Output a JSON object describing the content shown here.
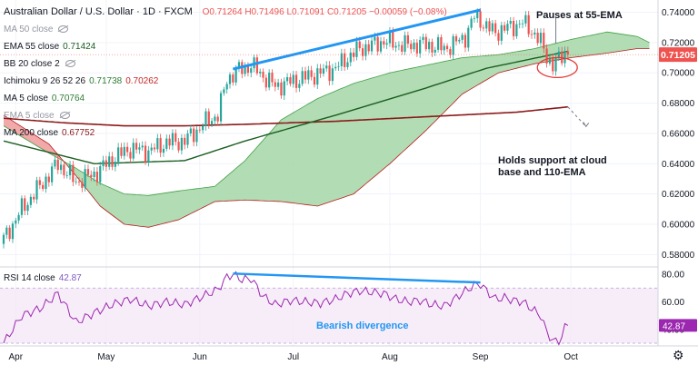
{
  "legend": {
    "title": "Australian Dollar / U.S. Dollar · 1D · FXCM",
    "ohlc": "O0.71264  H0.71496  L0.71091  C0.71205  −0.00059 (−0.08%)",
    "ma50": "MA 50 close",
    "ema55": "EMA 55 close",
    "ema55_val": "0.71424",
    "bb20": "BB 20 close 2",
    "ichimoku": "Ichimoku 9 26 52 26",
    "ichimoku_v1": "0.71738",
    "ichimoku_v2": "0.70262",
    "ma5": "MA 5 close",
    "ma5_val": "0.70764",
    "ema5": "EMA 5 close",
    "ma200": "MA 200 close",
    "ma200_val": "0.67752"
  },
  "rsi_legend": {
    "label": "RSI 14 close",
    "value": "42.87"
  },
  "annotations": {
    "top": "Pauses at 55-EMA",
    "support_line1": "Holds support at cloud",
    "support_line2": "base and 110-EMA",
    "rsi": "Bearish divergence"
  },
  "price_badge": "0.71205",
  "colors": {
    "up": "#26a69a",
    "down": "#ef5350",
    "ema55": "#1b5e20",
    "ma200": "#8b1a1a",
    "trend": "#2196f3",
    "rsi": "#9c27b0",
    "cloud_bull": "#a5d6a7",
    "cloud_bear": "#ef9a9a"
  },
  "chart_data": [
    {
      "type": "candlestick",
      "title": "Australian Dollar / U.S. Dollar · 1D · FXCM",
      "x_ticks": [
        "Apr",
        "May",
        "Jun",
        "Jul",
        "Aug",
        "Sep",
        "Oct"
      ],
      "y_ticks": [
        "0.74000",
        "0.72000",
        "0.70000",
        "0.68000",
        "0.66000",
        "0.64000",
        "0.62000",
        "0.60000",
        "0.58000"
      ],
      "ylim": [
        0.573,
        0.7445
      ],
      "last_close": 0.71205,
      "close_anchors": [
        [
          0,
          0.59
        ],
        [
          6,
          0.61
        ],
        [
          12,
          0.625
        ],
        [
          18,
          0.64
        ],
        [
          24,
          0.628
        ],
        [
          30,
          0.633
        ],
        [
          36,
          0.643
        ],
        [
          42,
          0.65
        ],
        [
          48,
          0.648
        ],
        [
          54,
          0.654
        ],
        [
          60,
          0.655
        ],
        [
          64,
          0.662
        ],
        [
          68,
          0.669
        ],
        [
          71,
          0.672
        ],
        [
          74,
          0.696
        ],
        [
          78,
          0.702
        ],
        [
          82,
          0.705
        ],
        [
          86,
          0.698
        ],
        [
          90,
          0.691
        ],
        [
          95,
          0.694
        ],
        [
          100,
          0.697
        ],
        [
          105,
          0.7
        ],
        [
          110,
          0.703
        ],
        [
          114,
          0.71
        ],
        [
          118,
          0.716
        ],
        [
          122,
          0.718
        ],
        [
          126,
          0.721
        ],
        [
          130,
          0.719
        ],
        [
          134,
          0.718
        ],
        [
          138,
          0.719
        ],
        [
          142,
          0.718
        ],
        [
          146,
          0.716
        ],
        [
          150,
          0.72
        ],
        [
          153,
          0.724
        ],
        [
          156,
          0.737
        ],
        [
          158,
          0.735
        ],
        [
          160,
          0.73
        ],
        [
          163,
          0.727
        ],
        [
          166,
          0.729
        ],
        [
          169,
          0.731
        ],
        [
          172,
          0.733
        ],
        [
          175,
          0.728
        ],
        [
          178,
          0.72
        ],
        [
          180,
          0.711
        ],
        [
          182,
          0.705
        ],
        [
          184,
          0.709
        ],
        [
          186,
          0.7134
        ],
        [
          187,
          0.7121
        ]
      ],
      "series": [
        {
          "name": "EMA 55 close",
          "anchors": [
            [
              0,
              0.655
            ],
            [
              30,
              0.64
            ],
            [
              60,
              0.642
            ],
            [
              80,
              0.655
            ],
            [
              110,
              0.672
            ],
            [
              140,
              0.69
            ],
            [
              160,
              0.703
            ],
            [
              187,
              0.7142
            ]
          ]
        },
        {
          "name": "MA 200 close",
          "anchors": [
            [
              0,
              0.67
            ],
            [
              20,
              0.667
            ],
            [
              40,
              0.665
            ],
            [
              60,
              0.665
            ],
            [
              80,
              0.666
            ],
            [
              110,
              0.668
            ],
            [
              140,
              0.671
            ],
            [
              170,
              0.674
            ],
            [
              187,
              0.6775
            ]
          ]
        }
      ],
      "cloud": {
        "span_a": [
          [
            0,
            0.665
          ],
          [
            15,
            0.647
          ],
          [
            24,
            0.637
          ],
          [
            32,
            0.627
          ],
          [
            40,
            0.62
          ],
          [
            48,
            0.619
          ],
          [
            58,
            0.622
          ],
          [
            70,
            0.625
          ],
          [
            80,
            0.642
          ],
          [
            92,
            0.669
          ],
          [
            104,
            0.683
          ],
          [
            116,
            0.693
          ],
          [
            128,
            0.7
          ],
          [
            140,
            0.705
          ],
          [
            152,
            0.71
          ],
          [
            164,
            0.712
          ],
          [
            176,
            0.716
          ],
          [
            188,
            0.722
          ],
          [
            200,
            0.727
          ],
          [
            210,
            0.724
          ],
          [
            214,
            0.72
          ]
        ],
        "span_b": [
          [
            0,
            0.672
          ],
          [
            15,
            0.653
          ],
          [
            24,
            0.632
          ],
          [
            32,
            0.612
          ],
          [
            40,
            0.6
          ],
          [
            48,
            0.598
          ],
          [
            58,
            0.603
          ],
          [
            70,
            0.615
          ],
          [
            80,
            0.616
          ],
          [
            92,
            0.615
          ],
          [
            104,
            0.612
          ],
          [
            116,
            0.62
          ],
          [
            128,
            0.64
          ],
          [
            140,
            0.662
          ],
          [
            152,
            0.686
          ],
          [
            164,
            0.7
          ],
          [
            176,
            0.706
          ],
          [
            188,
            0.71
          ],
          [
            200,
            0.713
          ],
          [
            210,
            0.716
          ],
          [
            214,
            0.716
          ]
        ]
      },
      "trendline": [
        [
          76,
          0.7025
        ],
        [
          158,
          0.7415
        ]
      ],
      "projection": [
        [
          187,
          0.6775
        ],
        [
          193,
          0.6645
        ]
      ]
    },
    {
      "type": "line",
      "title": "RSI 14 close",
      "x_ticks": [
        "Apr",
        "May",
        "Jun",
        "Jul",
        "Aug",
        "Sep",
        "Oct"
      ],
      "y_ticks": [
        "80.00",
        "60.00",
        "40.00"
      ],
      "ylim": [
        28,
        84
      ],
      "band": [
        30,
        70
      ],
      "last_value": 42.87,
      "rsi_anchors": [
        [
          0,
          30
        ],
        [
          6,
          50
        ],
        [
          12,
          55
        ],
        [
          18,
          66
        ],
        [
          24,
          45
        ],
        [
          30,
          52
        ],
        [
          36,
          58
        ],
        [
          42,
          62
        ],
        [
          48,
          57
        ],
        [
          54,
          60
        ],
        [
          60,
          58
        ],
        [
          64,
          62
        ],
        [
          68,
          66
        ],
        [
          71,
          69
        ],
        [
          74,
          78
        ],
        [
          76,
          80
        ],
        [
          79,
          76
        ],
        [
          82,
          77
        ],
        [
          86,
          64
        ],
        [
          90,
          58
        ],
        [
          95,
          61
        ],
        [
          100,
          60
        ],
        [
          105,
          59
        ],
        [
          110,
          62
        ],
        [
          114,
          66
        ],
        [
          118,
          68
        ],
        [
          122,
          67
        ],
        [
          126,
          66
        ],
        [
          130,
          62
        ],
        [
          134,
          60
        ],
        [
          138,
          61
        ],
        [
          142,
          58
        ],
        [
          146,
          57
        ],
        [
          150,
          63
        ],
        [
          153,
          68
        ],
        [
          156,
          72
        ],
        [
          158,
          73
        ],
        [
          160,
          68
        ],
        [
          163,
          62
        ],
        [
          166,
          63
        ],
        [
          169,
          61
        ],
        [
          172,
          60
        ],
        [
          175,
          55
        ],
        [
          178,
          50
        ],
        [
          180,
          38
        ],
        [
          182,
          32
        ],
        [
          184,
          30
        ],
        [
          186,
          41
        ],
        [
          187,
          42.87
        ]
      ],
      "trendline": [
        [
          76,
          80.5
        ],
        [
          158,
          74
        ]
      ]
    }
  ]
}
